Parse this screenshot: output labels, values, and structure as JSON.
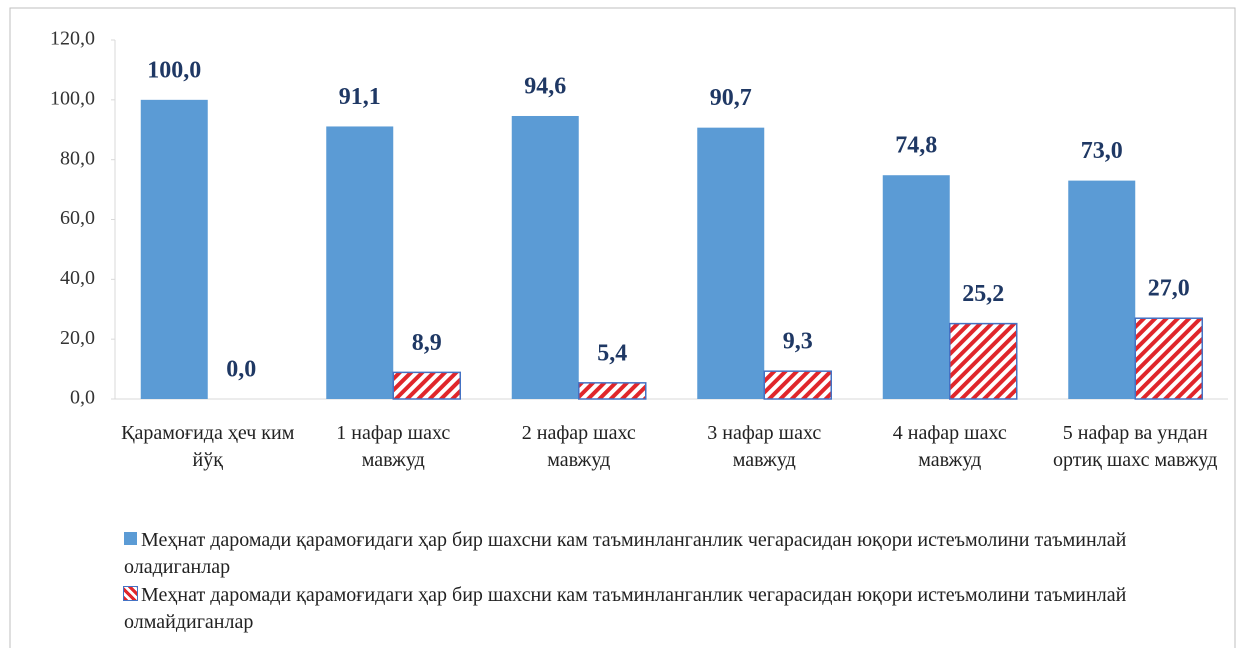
{
  "chart_data": {
    "type": "bar",
    "categories": [
      "Қарамоғида ҳеч ким йўқ",
      "1 нафар шахс мавжуд",
      "2 нафар шахс мавжуд",
      "3 нафар шахс мавжуд",
      "4 нафар шахс мавжуд",
      "5 нафар ва ундан ортиқ шахс мавжуд"
    ],
    "series": [
      {
        "name": "Меҳнат  даромади қарамоғидаги ҳар бир шахсни кам таъминланганлик чегарасидан юқори истеъмолини таъминлай оладиганлар",
        "color": "#5b9bd5",
        "values": [
          100.0,
          91.1,
          94.6,
          90.7,
          74.8,
          73.0
        ],
        "value_labels": [
          "100,0",
          "91,1",
          "94,6",
          "90,7",
          "74,8",
          "73,0"
        ]
      },
      {
        "name": "Меҳнат  даромади қарамоғидаги ҳар бир шахсни кам таъминланганлик чегарасидан юқори истеъмолини таъминлай олмайдиганлар",
        "color": "#e0262b",
        "values": [
          0.0,
          8.9,
          5.4,
          9.3,
          25.2,
          27.0
        ],
        "value_labels": [
          "0,0",
          "8,9",
          "5,4",
          "9,3",
          "25,2",
          "27,0"
        ]
      }
    ],
    "ylim": [
      0,
      120
    ],
    "yticks": [
      {
        "value": 0,
        "label": "0,0"
      },
      {
        "value": 20,
        "label": "20,0"
      },
      {
        "value": 40,
        "label": "40,0"
      },
      {
        "value": 60,
        "label": "60,0"
      },
      {
        "value": 80,
        "label": "80,0"
      },
      {
        "value": 100,
        "label": "100,0"
      },
      {
        "value": 120,
        "label": "120,0"
      }
    ],
    "grid": false
  }
}
